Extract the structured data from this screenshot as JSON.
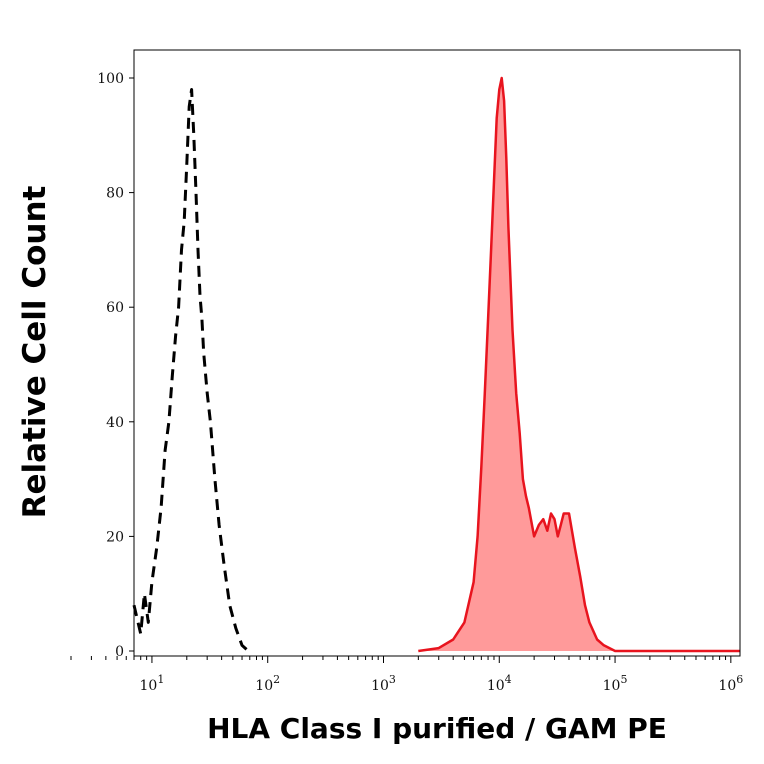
{
  "chart_data": {
    "type": "area",
    "xlabel": "HLA Class I purified / GAM PE",
    "ylabel": "Relative Cell Count",
    "x_scale": "log",
    "xlim": [
      7,
      1200000
    ],
    "ylim": [
      0,
      105
    ],
    "x_ticks": [
      {
        "value": 10,
        "base": "10",
        "exp": "1"
      },
      {
        "value": 100,
        "base": "10",
        "exp": "2"
      },
      {
        "value": 1000,
        "base": "10",
        "exp": "3"
      },
      {
        "value": 10000,
        "base": "10",
        "exp": "4"
      },
      {
        "value": 100000,
        "base": "10",
        "exp": "5"
      },
      {
        "value": 1000000,
        "base": "10",
        "exp": "6"
      }
    ],
    "y_ticks": [
      0,
      20,
      40,
      60,
      80,
      100
    ],
    "grid": false,
    "colors": {
      "stained_line": "#e8141e",
      "stained_fill": "#ff9a9a",
      "control_line": "#000000",
      "axis": "#000000"
    },
    "series": [
      {
        "style": "dashed-black",
        "x": [
          7,
          8,
          8.6,
          9.3,
          10,
          11,
          12,
          13,
          14,
          15,
          16,
          17,
          18,
          19,
          20,
          21,
          22,
          23,
          24,
          25,
          26,
          27,
          28,
          30,
          32,
          35,
          38,
          42,
          47,
          53,
          60,
          68
        ],
        "y": [
          8,
          3,
          10,
          5,
          12,
          18,
          25,
          35,
          40,
          48,
          55,
          60,
          70,
          75,
          85,
          95,
          98,
          90,
          80,
          70,
          62,
          58,
          52,
          45,
          40,
          30,
          22,
          15,
          8,
          4,
          1,
          0
        ]
      },
      {
        "style": "filled-red",
        "x": [
          2000,
          3000,
          4000,
          5000,
          6000,
          6500,
          7000,
          7500,
          8000,
          8500,
          9000,
          9500,
          10000,
          10500,
          11000,
          11500,
          12000,
          13000,
          14000,
          15000,
          16000,
          17000,
          18000,
          20000,
          22000,
          24000,
          26000,
          28000,
          30000,
          32000,
          34000,
          36000,
          40000,
          45000,
          50000,
          55000,
          60000,
          70000,
          80000,
          100000,
          1200000
        ],
        "y": [
          0,
          0.5,
          2,
          5,
          12,
          20,
          32,
          45,
          58,
          70,
          82,
          93,
          98,
          100,
          96,
          86,
          74,
          56,
          45,
          38,
          30,
          27,
          25,
          20,
          22,
          23,
          21,
          24,
          23,
          20,
          22,
          24,
          24,
          18,
          13,
          8,
          5,
          2,
          1,
          0,
          0
        ]
      }
    ]
  }
}
